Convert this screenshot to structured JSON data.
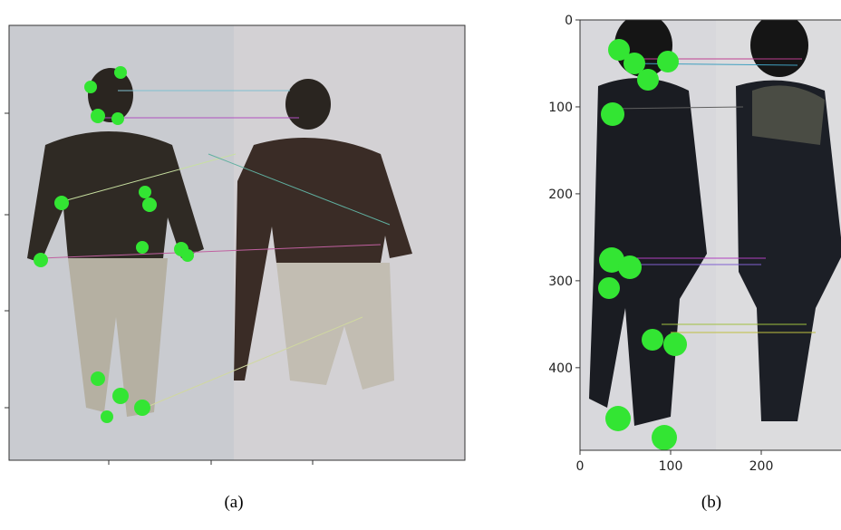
{
  "panels": [
    {
      "caption": "(a)"
    },
    {
      "caption": "(b)",
      "xlim": [
        0,
        290
      ],
      "ylim": [
        0,
        495
      ],
      "xticks": [
        0,
        100,
        200
      ],
      "yticks": [
        0,
        100,
        200,
        300,
        400
      ]
    }
  ]
}
